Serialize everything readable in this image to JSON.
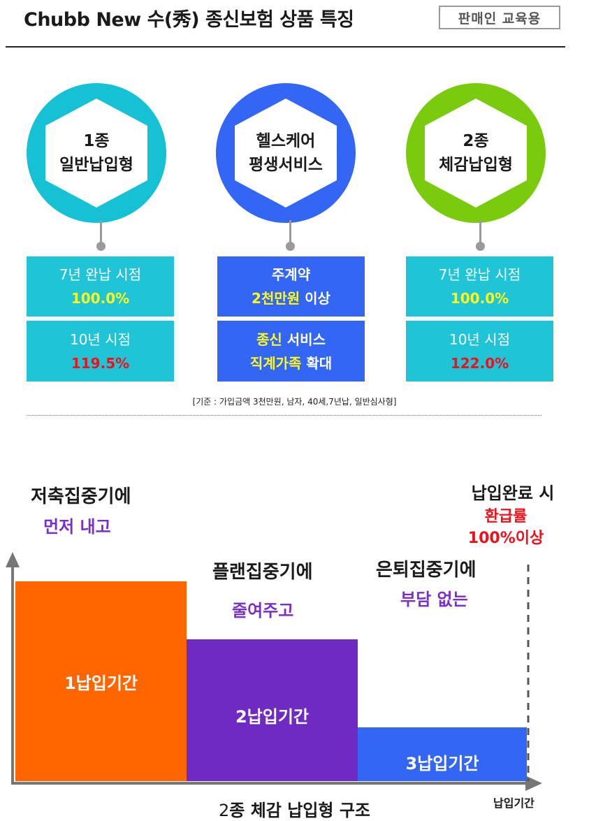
{
  "header": {
    "title": "Chubb New 수(秀) 종신보험 상품 특징",
    "badge": "판매인 교육용"
  },
  "features": [
    {
      "circle_color": "#17c1d4",
      "hex_line1": "1종",
      "hex_line2": "일반납입형",
      "box1_line1": "7년 완납 시점",
      "box1_line2": "100.0%",
      "box2_line1": "10년 시점",
      "box2_line2": "119.5%"
    },
    {
      "circle_color": "#3366f5",
      "hex_line1": "헬스케어",
      "hex_line2": "평생서비스",
      "box1_line1": "주계약",
      "box1_line2_highlight": "2천만원",
      "box1_line2_rest": " 이상",
      "box2_line1_highlight": "종신",
      "box2_line1_rest": " 서비스",
      "box2_line2_highlight": "직계가족",
      "box2_line2_rest": " 확대"
    },
    {
      "circle_color": "#7acb0e",
      "hex_line1": "2종",
      "hex_line2": "체감납입형",
      "box1_line1": "7년 완납 시점",
      "box1_line2": "100.0%",
      "box2_line1": "10년 시점",
      "box2_line2": "122.0%"
    }
  ],
  "basis_note": "[기준 : 가입금액 3천만원, 남자, 40세,7년납, 일반심사형]",
  "diagram": {
    "phase1_title": "저축집중기에",
    "phase1_sub": "먼저 내고",
    "phase2_title": "플랜집중기에",
    "phase2_sub": "줄여주고",
    "phase3_title": "은퇴집중기에",
    "phase3_sub": "부담 없는",
    "complete_title": "납입완료 시",
    "complete_line2": "환급률",
    "complete_line3": "100%이상",
    "bars": [
      {
        "label": "1납입기간",
        "color": "#ff6600",
        "level": 1.0
      },
      {
        "label": "2납입기간",
        "color": "#6f2ac2",
        "level": 0.71
      },
      {
        "label": "3납입기간",
        "color": "#3366f5",
        "level": 0.27
      }
    ],
    "x_axis_label": "납입기간",
    "caption_prefix": "2",
    "caption_rest": "종 체감 납입형 구조"
  },
  "colors": {
    "cyan_box": "#1fc4d6",
    "blue_box": "#3366f5",
    "highlight_yellow": "#fffb18",
    "highlight_red": "#f0101a",
    "purple_text": "#7b2fc9"
  }
}
